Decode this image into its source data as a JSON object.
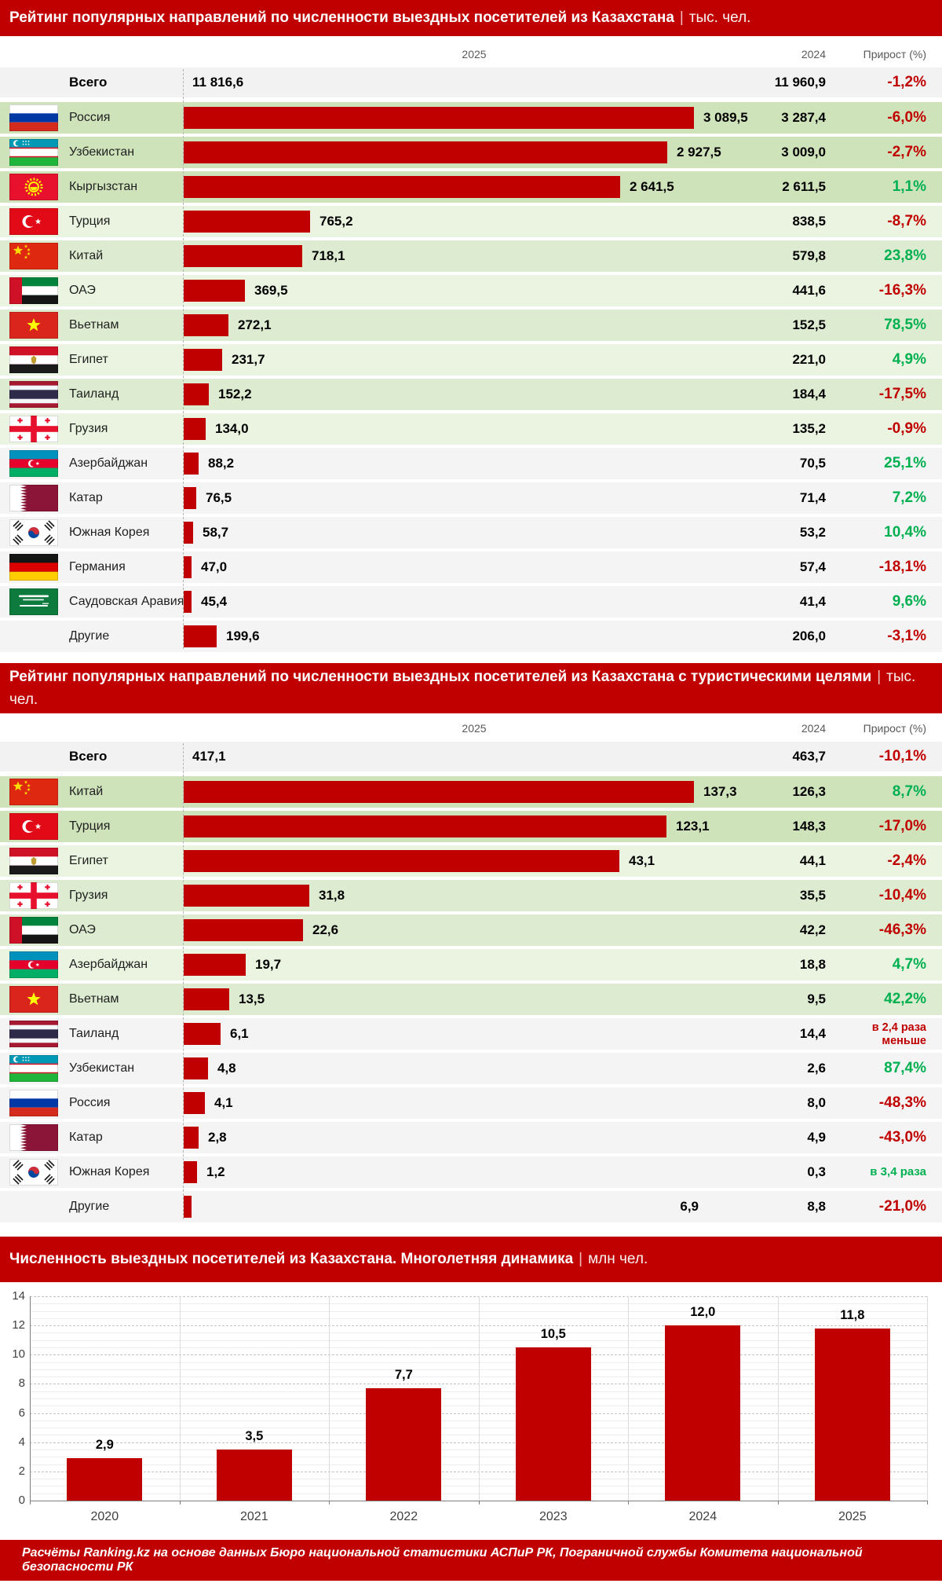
{
  "ui": {
    "sep": "|"
  },
  "table1": {
    "title": "Рейтинг популярных направлений по численности выездных посетителей из Казахстана",
    "unit": "тыс. чел.",
    "columns": {
      "y2025": "2025",
      "y2024": "2024",
      "growth": "Прирост (%)"
    },
    "total": {
      "label": "Всего",
      "v2025": "11 816,6",
      "v2024": "11 960,9",
      "growth": "-1,2%",
      "dir": "down"
    },
    "rows": [
      {
        "country": "Россия",
        "flag": "russia",
        "v2025": "3 089,5",
        "v2024": "3 287,4",
        "growth": "-6,0%",
        "dir": "down",
        "bar": 650,
        "shade": "top"
      },
      {
        "country": "Узбекистан",
        "flag": "uzbekistan",
        "v2025": "2 927,5",
        "v2024": "3 009,0",
        "growth": "-2,7%",
        "dir": "down",
        "bar": 616,
        "shade": "top"
      },
      {
        "country": "Кыргызстан",
        "flag": "kyrgyzstan",
        "v2025": "2 641,5",
        "v2024": "2 611,5",
        "growth": "1,1%",
        "dir": "up",
        "bar": 556,
        "shade": "top"
      },
      {
        "country": "Турция",
        "flag": "turkey",
        "v2025": "765,2",
        "v2024": "838,5",
        "growth": "-8,7%",
        "dir": "down",
        "bar": 161,
        "shade": "light"
      },
      {
        "country": "Китай",
        "flag": "china",
        "v2025": "718,1",
        "v2024": "579,8",
        "growth": "23,8%",
        "dir": "up",
        "bar": 151,
        "shade": "medium"
      },
      {
        "country": "ОАЭ",
        "flag": "uae",
        "v2025": "369,5",
        "v2024": "441,6",
        "growth": "-16,3%",
        "dir": "down",
        "bar": 78,
        "shade": "light"
      },
      {
        "country": "Вьетнам",
        "flag": "vietnam",
        "v2025": "272,1",
        "v2024": "152,5",
        "growth": "78,5%",
        "dir": "up",
        "bar": 57,
        "shade": "medium"
      },
      {
        "country": "Египет",
        "flag": "egypt",
        "v2025": "231,7",
        "v2024": "221,0",
        "growth": "4,9%",
        "dir": "up",
        "bar": 49,
        "shade": "light"
      },
      {
        "country": "Таиланд",
        "flag": "thailand",
        "v2025": "152,2",
        "v2024": "184,4",
        "growth": "-17,5%",
        "dir": "down",
        "bar": 32,
        "shade": "medium"
      },
      {
        "country": "Грузия",
        "flag": "georgia",
        "v2025": "134,0",
        "v2024": "135,2",
        "growth": "-0,9%",
        "dir": "down",
        "bar": 28,
        "shade": "light"
      },
      {
        "country": "Азербайджан",
        "flag": "azerbaijan",
        "v2025": "88,2",
        "v2024": "70,5",
        "growth": "25,1%",
        "dir": "up",
        "bar": 19,
        "shade": "gray"
      },
      {
        "country": "Катар",
        "flag": "qatar",
        "v2025": "76,5",
        "v2024": "71,4",
        "growth": "7,2%",
        "dir": "up",
        "bar": 16,
        "shade": "gray"
      },
      {
        "country": "Южная Корея",
        "flag": "south-korea",
        "v2025": "58,7",
        "v2024": "53,2",
        "growth": "10,4%",
        "dir": "up",
        "bar": 12,
        "shade": "gray"
      },
      {
        "country": "Германия",
        "flag": "germany",
        "v2025": "47,0",
        "v2024": "57,4",
        "growth": "-18,1%",
        "dir": "down",
        "bar": 10,
        "shade": "gray"
      },
      {
        "country": "Саудовская Аравия",
        "flag": "saudi-arabia",
        "v2025": "45,4",
        "v2024": "41,4",
        "growth": "9,6%",
        "dir": "up",
        "bar": 10,
        "shade": "gray"
      },
      {
        "country": "Другие",
        "flag": null,
        "v2025": "199,6",
        "v2024": "206,0",
        "growth": "-3,1%",
        "dir": "down",
        "bar": 42,
        "shade": "gray"
      }
    ]
  },
  "table2": {
    "title": "Рейтинг популярных направлений по численности выездных посетителей из Казахстана с туристическими целями",
    "unit": "тыс. чел.",
    "columns": {
      "y2025": "2025",
      "y2024": "2024",
      "growth": "Прирост (%)"
    },
    "total": {
      "label": "Всего",
      "v2025": "417,1",
      "v2024": "463,7",
      "growth": "-10,1%",
      "dir": "down"
    },
    "rows": [
      {
        "country": "Китай",
        "flag": "china",
        "v2025": "137,3",
        "v2024": "126,3",
        "growth": "8,7%",
        "dir": "up",
        "bar": 650,
        "shade": "top"
      },
      {
        "country": "Турция",
        "flag": "turkey",
        "v2025": "123,1",
        "v2024": "148,3",
        "growth": "-17,0%",
        "dir": "down",
        "bar": 615,
        "shade": "top"
      },
      {
        "country": "Египет",
        "flag": "egypt",
        "v2025": "43,1",
        "v2024": "44,1",
        "growth": "-2,4%",
        "dir": "down",
        "bar": 555,
        "shade": "light"
      },
      {
        "country": "Грузия",
        "flag": "georgia",
        "v2025": "31,8",
        "v2024": "35,5",
        "growth": "-10,4%",
        "dir": "down",
        "bar": 160,
        "shade": "medium"
      },
      {
        "country": "ОАЭ",
        "flag": "uae",
        "v2025": "22,6",
        "v2024": "42,2",
        "growth": "-46,3%",
        "dir": "down",
        "bar": 152,
        "shade": "medium"
      },
      {
        "country": "Азербайджан",
        "flag": "azerbaijan",
        "v2025": "19,7",
        "v2024": "18,8",
        "growth": "4,7%",
        "dir": "up",
        "bar": 79,
        "shade": "light"
      },
      {
        "country": "Вьетнам",
        "flag": "vietnam",
        "v2025": "13,5",
        "v2024": "9,5",
        "growth": "42,2%",
        "dir": "up",
        "bar": 58,
        "shade": "medium"
      },
      {
        "country": "Таиланд",
        "flag": "thailand",
        "v2025": "6,1",
        "v2024": "14,4",
        "growth": "в 2,4 раза\nменьше",
        "dir": "down",
        "bar": 47,
        "shade": "gray"
      },
      {
        "country": "Узбекистан",
        "flag": "uzbekistan",
        "v2025": "4,8",
        "v2024": "2,6",
        "growth": "87,4%",
        "dir": "up",
        "bar": 31,
        "shade": "gray"
      },
      {
        "country": "Россия",
        "flag": "russia",
        "v2025": "4,1",
        "v2024": "8,0",
        "growth": "-48,3%",
        "dir": "down",
        "bar": 27,
        "shade": "gray"
      },
      {
        "country": "Катар",
        "flag": "qatar",
        "v2025": "2,8",
        "v2024": "4,9",
        "growth": "-43,0%",
        "dir": "down",
        "bar": 19,
        "shade": "gray"
      },
      {
        "country": "Южная Корея",
        "flag": "south-korea",
        "v2025": "1,2",
        "v2024": "0,3",
        "growth": "в 3,4 раза",
        "dir": "up",
        "bar": 17,
        "shade": "gray"
      },
      {
        "country": "Другие",
        "flag": null,
        "v2025": "6,9",
        "v2024": "8,8",
        "growth": "-21,0%",
        "dir": "down",
        "bar": 10,
        "shade": "gray",
        "value_right": true
      }
    ]
  },
  "chart": {
    "title": "Численность выездных посетителей из Казахстана. Многолетняя динамика",
    "unit": "млн чел."
  },
  "footer": {
    "text": "Расчёты Ranking.kz на основе данных Бюро национальной статистики АСПиР РК, Пограничной службы Комитета национальной безопасности РК"
  },
  "colors": {
    "accent": "#c00000",
    "positive": "#00b050",
    "negative": "#c00000",
    "bar": "#c00000"
  },
  "chart_data": [
    {
      "type": "bar",
      "orientation": "horizontal",
      "title": "Рейтинг популярных направлений по численности выездных посетителей из Казахстана",
      "unit": "тыс. чел.",
      "total": {
        "label": "Всего",
        "v2025": 11816.6,
        "v2024": 11960.9,
        "growth_pct": -1.2
      },
      "categories": [
        "Россия",
        "Узбекистан",
        "Кыргызстан",
        "Турция",
        "Китай",
        "ОАЭ",
        "Вьетнам",
        "Египет",
        "Таиланд",
        "Грузия",
        "Азербайджан",
        "Катар",
        "Южная Корея",
        "Германия",
        "Саудовская Аравия",
        "Другие"
      ],
      "series": [
        {
          "name": "2025",
          "values": [
            3089.5,
            2927.5,
            2641.5,
            765.2,
            718.1,
            369.5,
            272.1,
            231.7,
            152.2,
            134.0,
            88.2,
            76.5,
            58.7,
            47.0,
            45.4,
            199.6
          ]
        },
        {
          "name": "2024",
          "values": [
            3287.4,
            3009.0,
            2611.5,
            838.5,
            579.8,
            441.6,
            152.5,
            221.0,
            184.4,
            135.2,
            70.5,
            71.4,
            53.2,
            57.4,
            41.4,
            206.0
          ]
        }
      ],
      "growth": [
        "-6,0%",
        "-2,7%",
        "1,1%",
        "-8,7%",
        "23,8%",
        "-16,3%",
        "78,5%",
        "4,9%",
        "-17,5%",
        "-0,9%",
        "25,1%",
        "7,2%",
        "10,4%",
        "-18,1%",
        "9,6%",
        "-3,1%"
      ]
    },
    {
      "type": "bar",
      "orientation": "horizontal",
      "title": "Рейтинг популярных направлений по численности выездных посетителей из Казахстана с туристическими целями",
      "unit": "тыс. чел.",
      "total": {
        "label": "Всего",
        "v2025": 417.1,
        "v2024": 463.7,
        "growth_pct": -10.1
      },
      "categories": [
        "Китай",
        "Турция",
        "Египет",
        "Грузия",
        "ОАЭ",
        "Азербайджан",
        "Вьетнам",
        "Таиланд",
        "Узбекистан",
        "Россия",
        "Катар",
        "Южная Корея",
        "Другие"
      ],
      "series": [
        {
          "name": "2025",
          "values": [
            137.3,
            123.1,
            43.1,
            31.8,
            22.6,
            19.7,
            13.5,
            6.1,
            4.8,
            4.1,
            2.8,
            1.2,
            6.9
          ]
        },
        {
          "name": "2024",
          "values": [
            126.3,
            148.3,
            44.1,
            35.5,
            42.2,
            18.8,
            9.5,
            14.4,
            2.6,
            8.0,
            4.9,
            0.3,
            8.8
          ]
        }
      ],
      "growth": [
        "8,7%",
        "-17,0%",
        "-2,4%",
        "-10,4%",
        "-46,3%",
        "4,7%",
        "42,2%",
        "в 2,4 раза меньше",
        "87,4%",
        "-48,3%",
        "-43,0%",
        "в 3,4 раза",
        "-21,0%"
      ]
    },
    {
      "type": "bar",
      "title": "Численность выездных посетителей из Казахстана. Многолетняя динамика",
      "unit": "млн чел.",
      "categories": [
        "2020",
        "2021",
        "2022",
        "2023",
        "2024",
        "2025"
      ],
      "values": [
        2.9,
        3.5,
        7.7,
        10.5,
        12.0,
        11.8
      ],
      "labels": [
        "2,9",
        "3,5",
        "7,7",
        "10,5",
        "12,0",
        "11,8"
      ],
      "ylim": [
        0,
        14
      ],
      "ytick_step": 2,
      "grid": true,
      "bar_color": "#c00000"
    }
  ]
}
